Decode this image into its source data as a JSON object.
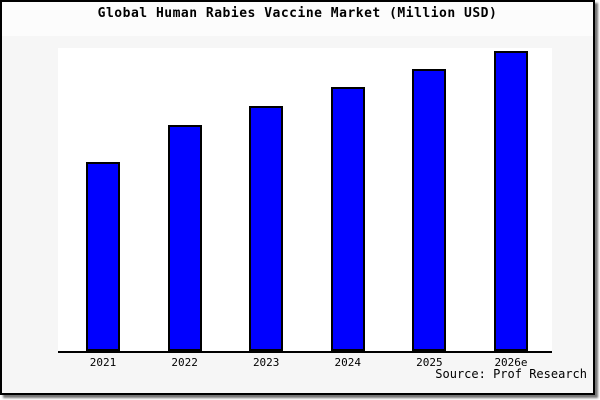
{
  "chart_data": {
    "type": "bar",
    "title": "Global Human Rabies Vaccine Market (Million USD)",
    "categories": [
      "2021",
      "2022",
      "2023",
      "2024",
      "2025",
      "2026e"
    ],
    "values": [
      63,
      75.3,
      81.7,
      88,
      94,
      100
    ],
    "unit_note": "no y-axis ticks shown in image; values are bar heights as percent of tallest (2026e) bar",
    "xlabel": "",
    "ylabel": "",
    "legend": "none",
    "grid": false,
    "bar_color": "#0000ff",
    "bar_border_color": "#000000"
  },
  "source": {
    "label": "Source: Prof Research"
  },
  "colors": {
    "figure_bg": "#f6f6f6",
    "plot_bg": "#ffffff",
    "frame_border": "#000000",
    "axis": "#000000",
    "bar_fill": "#0000ff",
    "text": "#000000"
  }
}
